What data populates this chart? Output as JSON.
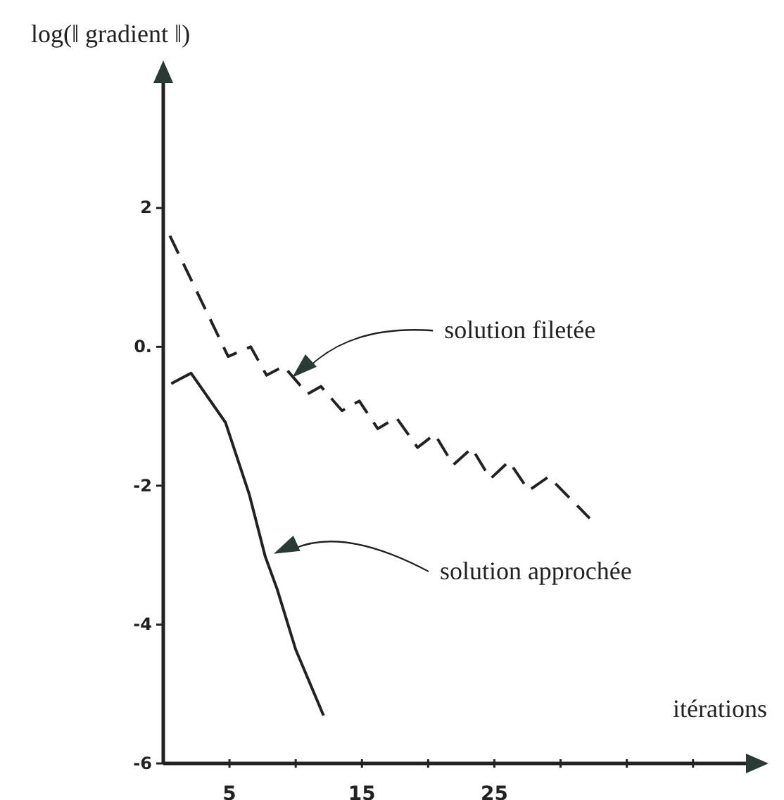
{
  "chart_data": {
    "type": "line",
    "xlabel": "itérations",
    "ylabel": "log(ǁ gradient ǁ)",
    "xlim": [
      0,
      44
    ],
    "ylim": [
      -6,
      3.8
    ],
    "xticks": [
      5,
      {
        "value": 10,
        "label": null
      },
      15,
      {
        "value": 20,
        "label": null
      },
      25,
      {
        "value": 30,
        "label": null
      },
      {
        "value": 35,
        "label": null
      },
      {
        "value": 40,
        "label": null
      }
    ],
    "yticks": [
      -6,
      -4,
      -2,
      {
        "value": 0,
        "label": "0."
      },
      2
    ],
    "marker": "none",
    "series": [
      {
        "name": "solution filetée",
        "color": "#222222",
        "line_style": "dashed",
        "x": [
          0.5,
          4.9,
          6.6,
          7.8,
          9.1,
          10.9,
          11.9,
          13.5,
          14.8,
          16.2,
          17.6,
          19.2,
          20.5,
          21.9,
          23.3,
          24.7,
          26.1,
          27.6,
          29.1,
          32.2
        ],
        "values": [
          1.6,
          -0.14,
          0.0,
          -0.41,
          -0.28,
          -0.68,
          -0.57,
          -0.92,
          -0.78,
          -1.18,
          -1.02,
          -1.45,
          -1.26,
          -1.7,
          -1.46,
          -1.9,
          -1.65,
          -2.07,
          -1.87,
          -2.47
        ]
      },
      {
        "name": "solution approchée",
        "color": "#222222",
        "line_style": "solid",
        "x": [
          0.6,
          2.1,
          4.7,
          6.5,
          7.7,
          8.6,
          10.0,
          12.1
        ],
        "values": [
          -0.53,
          -0.38,
          -1.09,
          -2.13,
          -3.02,
          -3.49,
          -4.36,
          -5.31
        ]
      }
    ]
  }
}
